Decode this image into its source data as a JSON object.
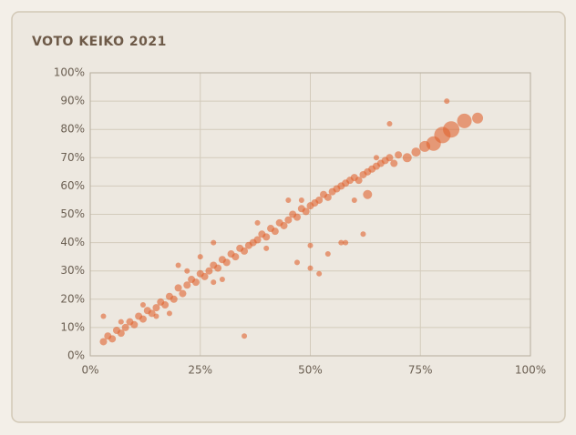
{
  "chart_data": {
    "type": "scatter",
    "title": "VOTO KEIKO 2021",
    "x": [
      3,
      4,
      5,
      6,
      7,
      8,
      9,
      10,
      11,
      12,
      13,
      14,
      15,
      16,
      17,
      18,
      19,
      20,
      21,
      22,
      23,
      24,
      25,
      26,
      27,
      28,
      29,
      30,
      31,
      32,
      33,
      34,
      35,
      36,
      37,
      38,
      39,
      40,
      41,
      42,
      43,
      44,
      45,
      46,
      47,
      48,
      49,
      50,
      51,
      52,
      53,
      54,
      55,
      56,
      57,
      58,
      59,
      60,
      61,
      62,
      63,
      64,
      65,
      66,
      67,
      68,
      69,
      70,
      72,
      74,
      76,
      78,
      80,
      82,
      85,
      88,
      3,
      35,
      81,
      68,
      60,
      57,
      54,
      50,
      47,
      40,
      30,
      25,
      22,
      18,
      12,
      7,
      50,
      52,
      58,
      62,
      63,
      45,
      38,
      28,
      20,
      15,
      28,
      48,
      65
    ],
    "y": [
      5,
      7,
      6,
      9,
      8,
      10,
      12,
      11,
      14,
      13,
      16,
      15,
      17,
      19,
      18,
      21,
      20,
      24,
      22,
      25,
      27,
      26,
      29,
      28,
      30,
      32,
      31,
      34,
      33,
      36,
      35,
      38,
      37,
      39,
      40,
      41,
      43,
      42,
      45,
      44,
      47,
      46,
      48,
      50,
      49,
      52,
      51,
      53,
      54,
      55,
      57,
      56,
      58,
      59,
      60,
      61,
      62,
      63,
      62,
      64,
      65,
      66,
      67,
      68,
      69,
      70,
      68,
      71,
      70,
      72,
      74,
      75,
      78,
      80,
      83,
      84,
      14,
      7,
      90,
      82,
      55,
      40,
      36,
      39,
      33,
      38,
      27,
      35,
      30,
      15,
      18,
      12,
      31,
      29,
      40,
      43,
      57,
      55,
      47,
      40,
      32,
      14,
      26,
      55,
      70
    ],
    "sizes": [
      4,
      4,
      4,
      4,
      4,
      4,
      4,
      4,
      4,
      4,
      4,
      4,
      4,
      4,
      4,
      4,
      4,
      4,
      4,
      4,
      4,
      4,
      4,
      4,
      4,
      4,
      4,
      4,
      4,
      4,
      4,
      4,
      4,
      4,
      4,
      4,
      4,
      4,
      4,
      4,
      4,
      4,
      4,
      4,
      4,
      4,
      4,
      4,
      4,
      4,
      4,
      4,
      4,
      4,
      4,
      4,
      4,
      4,
      4,
      4,
      4,
      4,
      4,
      4,
      4,
      4,
      4,
      4,
      5,
      5,
      6,
      8,
      9,
      9,
      8,
      6,
      3,
      3,
      3,
      3,
      3,
      3,
      3,
      3,
      3,
      3,
      3,
      3,
      3,
      3,
      3,
      3,
      3,
      3,
      3,
      3,
      5,
      3,
      3,
      3,
      3,
      3,
      3,
      3,
      3
    ],
    "color": "#e0622f",
    "xlim": [
      0,
      100
    ],
    "ylim": [
      0,
      100
    ],
    "xticks": [
      {
        "value": 0,
        "label": "0%"
      },
      {
        "value": 25,
        "label": "25%"
      },
      {
        "value": 50,
        "label": "50%"
      },
      {
        "value": 75,
        "label": "75%"
      },
      {
        "value": 100,
        "label": "100%"
      }
    ],
    "yticks": [
      {
        "value": 0,
        "label": "0%"
      },
      {
        "value": 10,
        "label": "10%"
      },
      {
        "value": 20,
        "label": "20%"
      },
      {
        "value": 30,
        "label": "30%"
      },
      {
        "value": 40,
        "label": "40%"
      },
      {
        "value": 50,
        "label": "50%"
      },
      {
        "value": 60,
        "label": "60%"
      },
      {
        "value": 70,
        "label": "70%"
      },
      {
        "value": 80,
        "label": "80%"
      },
      {
        "value": 90,
        "label": "90%"
      },
      {
        "value": 100,
        "label": "100%"
      }
    ],
    "grid": true
  }
}
